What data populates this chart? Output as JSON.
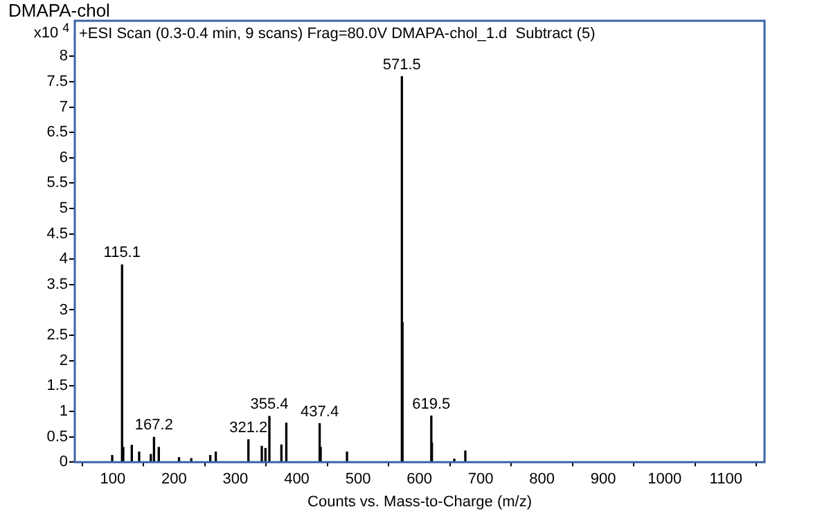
{
  "chart_data": {
    "type": "bar",
    "title": "DMAPA-chol",
    "subtitle": "+ESI Scan (0.3-0.4 min, 9 scans) Frag=80.0V DMAPA-chol_1.d  Subtract (5)",
    "xlabel": "Counts vs. Mass-to-Charge (m/z)",
    "ylabel": "x10$^{4}$",
    "x": [
      99,
      115.1,
      117,
      131,
      143,
      162,
      167.2,
      175,
      208,
      228,
      259,
      268,
      321.2,
      343,
      349,
      355.4,
      375,
      383,
      437.4,
      439,
      482,
      571.5,
      572.5,
      619.5,
      620.5,
      657,
      675
    ],
    "values": [
      0.13,
      3.89,
      0.29,
      0.33,
      0.2,
      0.15,
      0.49,
      0.29,
      0.09,
      0.07,
      0.13,
      0.2,
      0.44,
      0.31,
      0.27,
      0.9,
      0.34,
      0.77,
      0.76,
      0.29,
      0.2,
      7.6,
      2.75,
      0.91,
      0.38,
      0.06,
      0.22
    ],
    "color": "#000000",
    "xlim": [
      38,
      1163
    ],
    "xticks": [
      100,
      200,
      300,
      400,
      500,
      600,
      700,
      800,
      900,
      1000,
      1100
    ],
    "ylim": [
      0,
      8.7
    ],
    "yticks": [
      0,
      0.5,
      1,
      1.5,
      2,
      2.5,
      3,
      3.5,
      4,
      4.5,
      5,
      5.5,
      6,
      6.5,
      7,
      7.5,
      8
    ],
    "grid": false,
    "legend": false,
    "annotations": [
      {
        "text": "115.1",
        "x": 115.1,
        "y": 3.89
      },
      {
        "text": "167.2",
        "x": 167.2,
        "y": 0.49
      },
      {
        "text": "321.2",
        "x": 321.2,
        "y": 0.44
      },
      {
        "text": "355.4",
        "x": 355.4,
        "y": 0.9
      },
      {
        "text": "437.4",
        "x": 437.4,
        "y": 0.76
      },
      {
        "text": "571.5",
        "x": 571.5,
        "y": 7.6
      },
      {
        "text": "619.5",
        "x": 619.5,
        "y": 0.91
      }
    ]
  }
}
